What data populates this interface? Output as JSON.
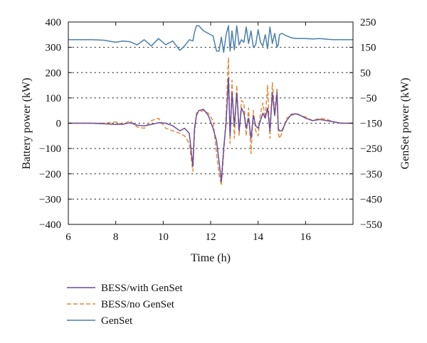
{
  "chart_data": {
    "type": "line",
    "title": "",
    "xlabel": "Time (h)",
    "ylabel": "Battery power (kW)",
    "y2label": "GenSet power (kW)",
    "xlim": [
      6,
      18
    ],
    "ylim": [
      -400,
      400
    ],
    "y2lim": [
      -550,
      250
    ],
    "xticks": [
      6,
      8,
      10,
      12,
      14,
      16
    ],
    "yticks": [
      -400,
      -300,
      -200,
      -100,
      0,
      100,
      200,
      300,
      400
    ],
    "y2ticks": [
      -550,
      -450,
      -350,
      -250,
      -150,
      -50,
      50,
      150,
      250
    ],
    "xtick_labels": [
      "6",
      "8",
      "10",
      "12",
      "14",
      "16"
    ],
    "ytick_labels": [
      "−400",
      "−300",
      "−200",
      "−100",
      "0",
      "100",
      "200",
      "300",
      "400"
    ],
    "y2tick_labels": [
      "−550",
      "−450",
      "−350",
      "−250",
      "−150",
      "−50",
      "50",
      "150",
      "250"
    ],
    "grid": "horizontal dotted at left-axis ticks",
    "legend_position": "below plot",
    "series": [
      {
        "name": "BESS/with GenSet",
        "axis": "left",
        "color": "#6a4c9c",
        "style": "solid",
        "x": [
          6,
          7,
          7.5,
          8,
          8.3,
          8.6,
          8.9,
          9.2,
          9.5,
          9.8,
          10.1,
          10.4,
          10.7,
          10.9,
          11.1,
          11.25,
          11.32,
          11.4,
          11.5,
          11.7,
          11.9,
          12.1,
          12.25,
          12.35,
          12.45,
          12.55,
          12.65,
          12.75,
          12.82,
          12.9,
          13.0,
          13.1,
          13.2,
          13.3,
          13.4,
          13.5,
          13.6,
          13.7,
          13.8,
          13.9,
          14.0,
          14.1,
          14.2,
          14.3,
          14.4,
          14.5,
          14.6,
          14.7,
          14.8,
          14.85,
          14.9,
          15.0,
          15.2,
          15.4,
          15.6,
          15.8,
          16.0,
          16.3,
          16.6,
          16.9,
          17.2,
          17.5,
          17.8,
          18.0
        ],
        "y": [
          0,
          0,
          -2,
          -5,
          -4,
          2,
          -8,
          -10,
          -5,
          2,
          0,
          -10,
          -30,
          -20,
          -40,
          -170,
          -20,
          30,
          50,
          55,
          30,
          -20,
          -70,
          -150,
          -230,
          -100,
          0,
          180,
          -50,
          120,
          -10,
          120,
          -30,
          60,
          40,
          -20,
          20,
          -60,
          30,
          -10,
          -20,
          10,
          40,
          20,
          60,
          -30,
          120,
          30,
          120,
          -20,
          -30,
          -30,
          10,
          35,
          37,
          30,
          20,
          10,
          15,
          10,
          5,
          0,
          0,
          0
        ]
      },
      {
        "name": "BESS/no GenSet",
        "axis": "left",
        "color": "#e38b3f",
        "style": "dashed",
        "x": [
          6,
          7,
          7.5,
          8,
          8.3,
          8.6,
          8.9,
          9.2,
          9.5,
          9.8,
          10.1,
          10.4,
          10.7,
          10.9,
          11.1,
          11.25,
          11.32,
          11.4,
          11.5,
          11.7,
          11.9,
          12.1,
          12.25,
          12.35,
          12.45,
          12.55,
          12.65,
          12.75,
          12.82,
          12.9,
          13.0,
          13.1,
          13.2,
          13.3,
          13.4,
          13.5,
          13.6,
          13.7,
          13.8,
          13.9,
          14.0,
          14.1,
          14.2,
          14.3,
          14.4,
          14.5,
          14.6,
          14.7,
          14.8,
          14.85,
          14.9,
          15.0,
          15.2,
          15.4,
          15.6,
          15.8,
          16.0,
          16.3,
          16.6,
          16.9,
          17.2,
          17.5,
          17.8,
          18.0
        ],
        "y": [
          0,
          0,
          0,
          5,
          -5,
          10,
          -15,
          -20,
          10,
          20,
          -20,
          -30,
          -40,
          -50,
          -80,
          -190,
          -40,
          40,
          45,
          50,
          40,
          10,
          -120,
          -200,
          -245,
          -120,
          30,
          260,
          -80,
          170,
          -60,
          150,
          -50,
          90,
          80,
          -50,
          60,
          -120,
          50,
          -30,
          -50,
          40,
          80,
          20,
          150,
          -60,
          160,
          40,
          140,
          -40,
          -60,
          -40,
          20,
          30,
          40,
          30,
          25,
          10,
          20,
          15,
          5,
          0,
          0,
          0
        ]
      },
      {
        "name": "GenSet",
        "axis": "right",
        "color": "#4a7fad",
        "style": "solid",
        "x": [
          6,
          7,
          7.5,
          8,
          8.3,
          8.6,
          8.9,
          9.2,
          9.5,
          9.8,
          10.1,
          10.4,
          10.7,
          10.9,
          11.1,
          11.25,
          11.32,
          11.4,
          11.5,
          11.7,
          11.9,
          12.1,
          12.25,
          12.35,
          12.45,
          12.55,
          12.65,
          12.75,
          12.82,
          12.9,
          13.0,
          13.1,
          13.2,
          13.3,
          13.4,
          13.5,
          13.6,
          13.7,
          13.8,
          13.9,
          14.0,
          14.1,
          14.2,
          14.3,
          14.4,
          14.5,
          14.6,
          14.7,
          14.8,
          14.85,
          14.9,
          15.0,
          15.2,
          15.4,
          15.6,
          15.8,
          16.0,
          16.3,
          16.6,
          16.9,
          17.2,
          17.5,
          17.8,
          18.0
        ],
        "y": [
          180,
          180,
          178,
          170,
          175,
          172,
          160,
          180,
          155,
          185,
          160,
          175,
          138,
          155,
          180,
          175,
          210,
          235,
          235,
          215,
          205,
          195,
          135,
          135,
          190,
          130,
          200,
          235,
          135,
          215,
          140,
          235,
          160,
          180,
          170,
          230,
          165,
          215,
          150,
          160,
          220,
          170,
          155,
          200,
          145,
          230,
          165,
          205,
          150,
          160,
          200,
          205,
          195,
          188,
          185,
          185,
          185,
          183,
          185,
          182,
          180,
          180,
          180,
          180
        ]
      }
    ]
  }
}
